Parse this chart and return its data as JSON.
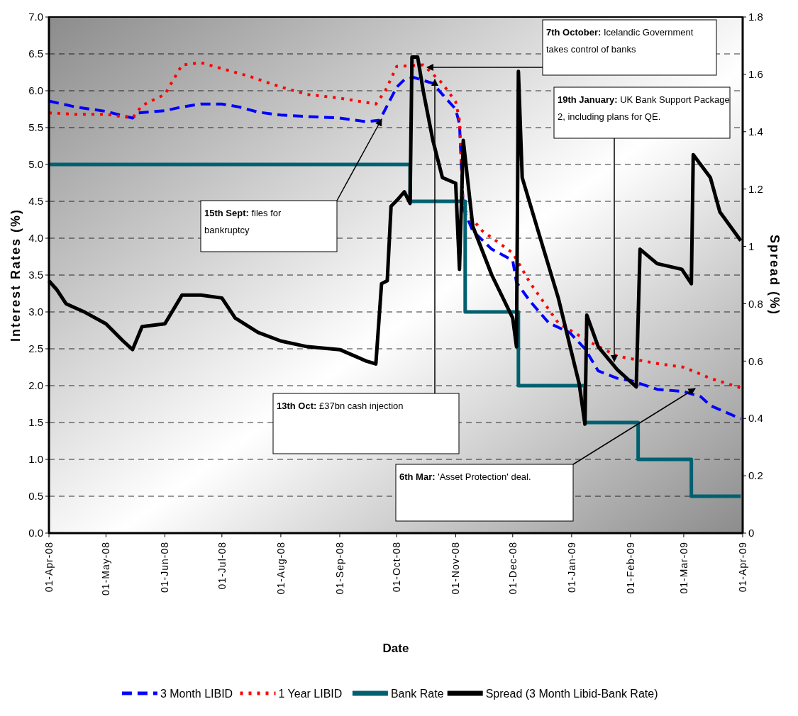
{
  "chart_data": {
    "type": "line",
    "xlabel": "Date",
    "ylabel": "Interest Rates (%)",
    "y2label": "Spread (%)",
    "legend": "bottom",
    "grid": "y",
    "marker": "none",
    "xlim": [
      "2008-04-01",
      "2009-04-01"
    ],
    "xticks": [
      {
        "value": "2008-04-01",
        "label": "01-Apr-08"
      },
      {
        "value": "2008-05-01",
        "label": "01-May-08"
      },
      {
        "value": "2008-06-01",
        "label": "01-Jun-08"
      },
      {
        "value": "2008-07-01",
        "label": "01-Jul-08"
      },
      {
        "value": "2008-08-01",
        "label": "01-Aug-08"
      },
      {
        "value": "2008-09-01",
        "label": "01-Sep-08"
      },
      {
        "value": "2008-10-01",
        "label": "01-Oct-08"
      },
      {
        "value": "2008-11-01",
        "label": "01-Nov-08"
      },
      {
        "value": "2008-12-01",
        "label": "01-Dec-08"
      },
      {
        "value": "2009-01-01",
        "label": "01-Jan-09"
      },
      {
        "value": "2009-02-01",
        "label": "01-Feb-09"
      },
      {
        "value": "2009-03-01",
        "label": "01-Mar-09"
      },
      {
        "value": "2009-04-01",
        "label": "01-Apr-09"
      }
    ],
    "ylim": [
      0,
      7
    ],
    "yticks": [
      {
        "value": 0,
        "label": "0.0"
      },
      {
        "value": 0.5,
        "label": "0.5"
      },
      {
        "value": 1,
        "label": "1.0"
      },
      {
        "value": 1.5,
        "label": "1.5"
      },
      {
        "value": 2,
        "label": "2.0"
      },
      {
        "value": 2.5,
        "label": "2.5"
      },
      {
        "value": 3,
        "label": "3.0"
      },
      {
        "value": 3.5,
        "label": "3.5"
      },
      {
        "value": 4,
        "label": "4.0"
      },
      {
        "value": 4.5,
        "label": "4.5"
      },
      {
        "value": 5,
        "label": "5.0"
      },
      {
        "value": 5.5,
        "label": "5.5"
      },
      {
        "value": 6,
        "label": "6.0"
      },
      {
        "value": 6.5,
        "label": "6.5"
      },
      {
        "value": 7,
        "label": "7.0"
      }
    ],
    "y2lim": [
      0,
      1.8
    ],
    "y2ticks": [
      0,
      0.2,
      0.4,
      0.6,
      0.8,
      1,
      1.2,
      1.4,
      1.6,
      1.8
    ],
    "series": [
      {
        "name": "3 Month LIBID",
        "color": "#0000ff",
        "line_style": "dashed",
        "x": [
          "2008-04-01",
          "2008-04-15",
          "2008-05-01",
          "2008-05-10",
          "2008-05-15",
          "2008-05-18",
          "2008-06-01",
          "2008-06-10",
          "2008-06-20",
          "2008-07-01",
          "2008-07-10",
          "2008-07-20",
          "2008-08-01",
          "2008-08-15",
          "2008-09-01",
          "2008-09-15",
          "2008-09-22",
          "2008-09-26",
          "2008-10-01",
          "2008-10-05",
          "2008-10-10",
          "2008-10-20",
          "2008-10-25",
          "2008-11-01",
          "2008-11-03",
          "2008-11-05",
          "2008-11-10",
          "2008-11-20",
          "2008-12-01",
          "2008-12-03",
          "2008-12-10",
          "2008-12-20",
          "2008-12-31",
          "2009-01-08",
          "2009-01-15",
          "2009-01-25",
          "2009-02-01",
          "2009-02-15",
          "2009-03-01",
          "2009-03-10",
          "2009-03-15",
          "2009-03-31"
        ],
        "values": [
          5.86,
          5.78,
          5.72,
          5.66,
          5.63,
          5.7,
          5.73,
          5.78,
          5.82,
          5.82,
          5.78,
          5.71,
          5.67,
          5.65,
          5.63,
          5.58,
          5.6,
          5.8,
          6.05,
          6.15,
          6.18,
          6.1,
          5.95,
          5.75,
          5.55,
          4.4,
          4.1,
          3.85,
          3.7,
          3.4,
          3.15,
          2.85,
          2.72,
          2.5,
          2.2,
          2.1,
          2.07,
          1.95,
          1.92,
          1.85,
          1.73,
          1.55
        ]
      },
      {
        "name": "1 Year LIBID",
        "color": "#ff0000",
        "line_style": "dotted",
        "x": [
          "2008-04-01",
          "2008-04-15",
          "2008-05-01",
          "2008-05-15",
          "2008-05-20",
          "2008-06-01",
          "2008-06-10",
          "2008-06-20",
          "2008-07-01",
          "2008-07-15",
          "2008-08-01",
          "2008-08-15",
          "2008-09-01",
          "2008-09-20",
          "2008-09-25",
          "2008-10-01",
          "2008-10-15",
          "2008-10-25",
          "2008-11-01",
          "2008-11-03",
          "2008-11-05",
          "2008-11-15",
          "2008-12-01",
          "2008-12-10",
          "2008-12-25",
          "2009-01-10",
          "2009-01-25",
          "2009-02-15",
          "2009-03-01",
          "2009-03-15",
          "2009-03-31"
        ],
        "values": [
          5.7,
          5.68,
          5.68,
          5.63,
          5.8,
          5.95,
          6.35,
          6.38,
          6.3,
          6.2,
          6.05,
          5.95,
          5.9,
          5.82,
          6.0,
          6.33,
          6.35,
          6.1,
          5.85,
          5.6,
          4.4,
          4.1,
          3.8,
          3.4,
          2.85,
          2.6,
          2.4,
          2.3,
          2.25,
          2.1,
          1.97
        ]
      },
      {
        "name": "Bank Rate",
        "color": "#006070",
        "type": "step",
        "line_style": "solid",
        "x": [
          "2008-04-01",
          "2008-10-08",
          "2008-11-06",
          "2008-12-04",
          "2009-01-08",
          "2009-02-05",
          "2009-03-05",
          "2009-03-31"
        ],
        "values": [
          5,
          4.5,
          3,
          2,
          1.5,
          1,
          0.5,
          0.5
        ]
      },
      {
        "name": "Spread (3 Month Libid-Bank Rate)",
        "color": "#000000",
        "axis": "y2",
        "line_style": "solid",
        "x": [
          "2008-04-01",
          "2008-04-05",
          "2008-04-10",
          "2008-04-20",
          "2008-05-01",
          "2008-05-10",
          "2008-05-15",
          "2008-05-20",
          "2008-06-01",
          "2008-06-10",
          "2008-06-20",
          "2008-07-01",
          "2008-07-08",
          "2008-07-20",
          "2008-08-01",
          "2008-08-15",
          "2008-09-01",
          "2008-09-15",
          "2008-09-20",
          "2008-09-23",
          "2008-09-26",
          "2008-09-28",
          "2008-10-01",
          "2008-10-05",
          "2008-10-08",
          "2008-10-09",
          "2008-10-12",
          "2008-10-15",
          "2008-10-20",
          "2008-10-25",
          "2008-11-01",
          "2008-11-03",
          "2008-11-05",
          "2008-11-10",
          "2008-11-20",
          "2008-12-01",
          "2008-12-03",
          "2008-12-04",
          "2008-12-06",
          "2008-12-15",
          "2008-12-25",
          "2009-01-05",
          "2009-01-08",
          "2009-01-09",
          "2009-01-15",
          "2009-01-25",
          "2009-02-04",
          "2009-02-06",
          "2009-02-15",
          "2009-02-28",
          "2009-03-05",
          "2009-03-06",
          "2009-03-15",
          "2009-03-20",
          "2009-03-31"
        ],
        "values": [
          0.88,
          0.85,
          0.8,
          0.77,
          0.73,
          0.67,
          0.64,
          0.72,
          0.73,
          0.83,
          0.83,
          0.82,
          0.75,
          0.7,
          0.67,
          0.65,
          0.64,
          0.6,
          0.59,
          0.87,
          0.88,
          1.14,
          1.16,
          1.19,
          1.15,
          1.66,
          1.66,
          1.54,
          1.37,
          1.24,
          1.22,
          0.92,
          1.37,
          1.07,
          0.9,
          0.75,
          0.65,
          1.61,
          1.24,
          1.04,
          0.82,
          0.52,
          0.38,
          0.76,
          0.65,
          0.57,
          0.51,
          0.99,
          0.94,
          0.92,
          0.87,
          1.32,
          1.24,
          1.12,
          1.02
        ]
      }
    ],
    "annotations": [
      "15th Sept: files for bankruptcy",
      "7th October: Icelandic Government takes control of banks",
      "13th Oct: £37bn cash injection",
      "19th January: UK Bank Support Package 2, including plans for QE.",
      "6th Mar: 'Asset Protection' deal."
    ]
  }
}
